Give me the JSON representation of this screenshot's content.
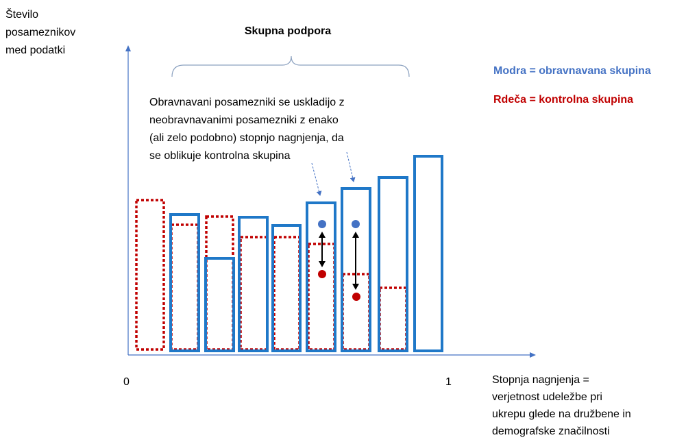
{
  "y_axis_label": [
    "Število",
    "posameznikov",
    "med podatki"
  ],
  "title": "Skupna podpora",
  "legend": {
    "treated": "Modra = obravnavana skupina",
    "control": "Rdeča = kontrolna skupina"
  },
  "annotation": [
    "Obravnavani posamezniki se uskladijo z",
    "neobravnavanimi posamezniki z enako",
    "(ali zelo podobno) stopnjo nagnjenja, da",
    "se oblikuje kontrolna skupina"
  ],
  "x_axis_ticks": [
    "0",
    "1"
  ],
  "x_axis_label": [
    "Stopnja nagnjenja =",
    "verjetnost udeležbe pri",
    "ukrepu glede na družbene in",
    "demografske značilnosti"
  ]
}
